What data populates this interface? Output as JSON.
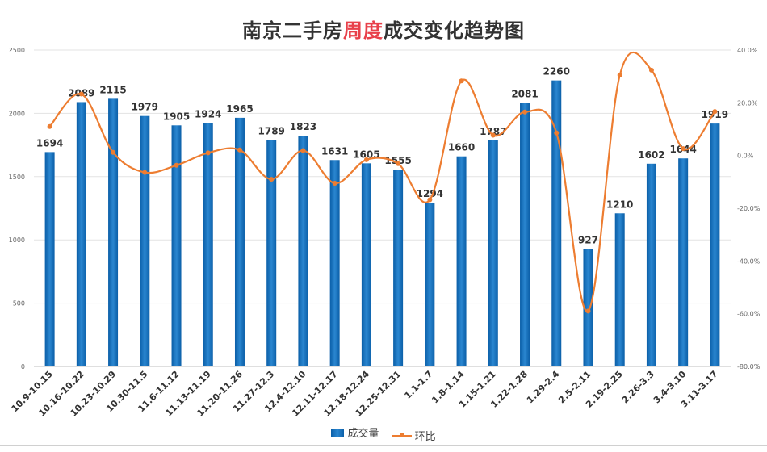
{
  "title": {
    "part1": "南京二手房",
    "highlight": "周度",
    "part2": "成交变化趋势图"
  },
  "colors": {
    "bar": "#0b5fa8",
    "bar_light": "#2a86d0",
    "line": "#ed7d31",
    "title_highlight": "#e8404a"
  },
  "legend": {
    "bar_label": "成交量",
    "line_label": "环比"
  },
  "chart_data": {
    "type": "bar",
    "categories": [
      "10.9-10.15",
      "10.16-10.22",
      "10.23-10.29",
      "10.30-11.5",
      "11.6-11.12",
      "11.13-11.19",
      "11.20-11.26",
      "11.27-12.3",
      "12.4-12.10",
      "12.11-12.17",
      "12.18-12.24",
      "12.25-12.31",
      "1.1-1.7",
      "1.8-1.14",
      "1.15-1.21",
      "1.22-1.28",
      "1.29-2.4",
      "2.5-2.11",
      "2.19-2.25",
      "2.26-3.3",
      "3.4-3.10",
      "3.11-3.17"
    ],
    "series": [
      {
        "name": "成交量",
        "type": "bar",
        "axis": "left",
        "values": [
          1694,
          2089,
          2115,
          1979,
          1905,
          1924,
          1965,
          1789,
          1823,
          1631,
          1605,
          1555,
          1294,
          1660,
          1787,
          2081,
          2260,
          927,
          1210,
          1602,
          1644,
          1919
        ]
      },
      {
        "name": "环比",
        "type": "line",
        "axis": "right",
        "values": [
          11.0,
          23.3,
          1.2,
          -6.4,
          -3.7,
          1.0,
          2.1,
          -9.0,
          1.9,
          -10.5,
          -1.6,
          -3.1,
          -16.8,
          28.3,
          7.7,
          16.5,
          8.6,
          -59.0,
          30.5,
          32.4,
          2.6,
          16.7
        ]
      }
    ],
    "left_axis": {
      "ylim": [
        0,
        2500
      ],
      "ticks": [
        "0",
        "500",
        "1000",
        "1500",
        "2000",
        "2500"
      ]
    },
    "right_axis": {
      "ylim": [
        -80,
        40
      ],
      "ticks": [
        "-80.0%",
        "-60.0%",
        "-40.0%",
        "-20.0%",
        "0.0%",
        "20.0%",
        "40.0%"
      ]
    },
    "grid": true,
    "legend_position": "bottom"
  }
}
